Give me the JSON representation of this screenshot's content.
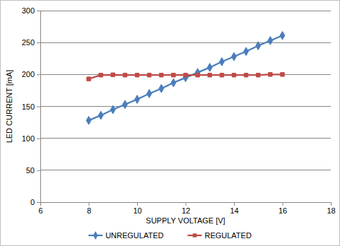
{
  "chart_data": {
    "type": "line",
    "x_label": "SUPPLY VOLTAGE [V]",
    "y_label": "LED CURRENT [mA]",
    "x": [
      8,
      8.5,
      9,
      9.5,
      10,
      10.5,
      11,
      11.5,
      12,
      12.5,
      13,
      13.5,
      14,
      14.5,
      15,
      15.5,
      16
    ],
    "series": [
      {
        "name": "UNREGULATED",
        "color": "#4a7ebb",
        "marker": "diamond",
        "values": [
          128,
          136,
          145,
          153,
          161,
          170,
          178,
          187,
          195,
          203,
          211,
          220,
          228,
          236,
          245,
          253,
          261
        ]
      },
      {
        "name": "REGULATED",
        "color": "#be4b48",
        "marker": "square",
        "values": [
          193,
          199,
          199.5,
          199,
          199,
          199,
          199,
          199,
          199,
          199,
          199,
          199,
          199,
          199,
          199,
          200,
          200
        ]
      }
    ],
    "xlim": [
      6,
      18
    ],
    "xticks": [
      6,
      8,
      10,
      12,
      14,
      16,
      18
    ],
    "ylim": [
      0,
      300
    ],
    "yticks": [
      0,
      50,
      100,
      150,
      200,
      250,
      300
    ],
    "grid": true,
    "legend": "bottom"
  }
}
